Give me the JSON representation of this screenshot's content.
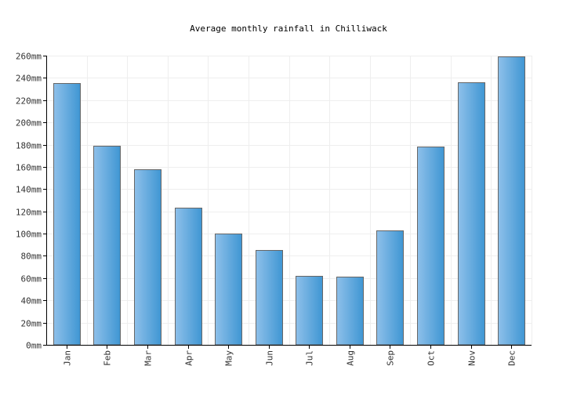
{
  "chart_data": {
    "type": "bar",
    "title": "Average monthly rainfall in Chilliwack",
    "xlabel": "",
    "ylabel": "",
    "categories": [
      "Jan",
      "Feb",
      "Mar",
      "Apr",
      "May",
      "Jun",
      "Jul",
      "Aug",
      "Sep",
      "Oct",
      "Nov",
      "Dec"
    ],
    "values": [
      235,
      179,
      158,
      123,
      100,
      85,
      62,
      61,
      103,
      178,
      236,
      259
    ],
    "ylim": [
      0,
      260
    ],
    "yticks": [
      0,
      20,
      40,
      60,
      80,
      100,
      120,
      140,
      160,
      180,
      200,
      220,
      240,
      260
    ],
    "ytick_labels": [
      "0mm",
      "20mm",
      "40mm",
      "60mm",
      "80mm",
      "100mm",
      "120mm",
      "140mm",
      "160mm",
      "180mm",
      "200mm",
      "220mm",
      "240mm",
      "260mm"
    ],
    "grid": true,
    "legend": "none",
    "colors": {
      "bar_light": "#8ec0ea",
      "bar_dark": "#3f96d3",
      "bar_stroke": "#666666",
      "grid": "#eeeeee",
      "axis": "#000000",
      "text": "#333333"
    }
  }
}
